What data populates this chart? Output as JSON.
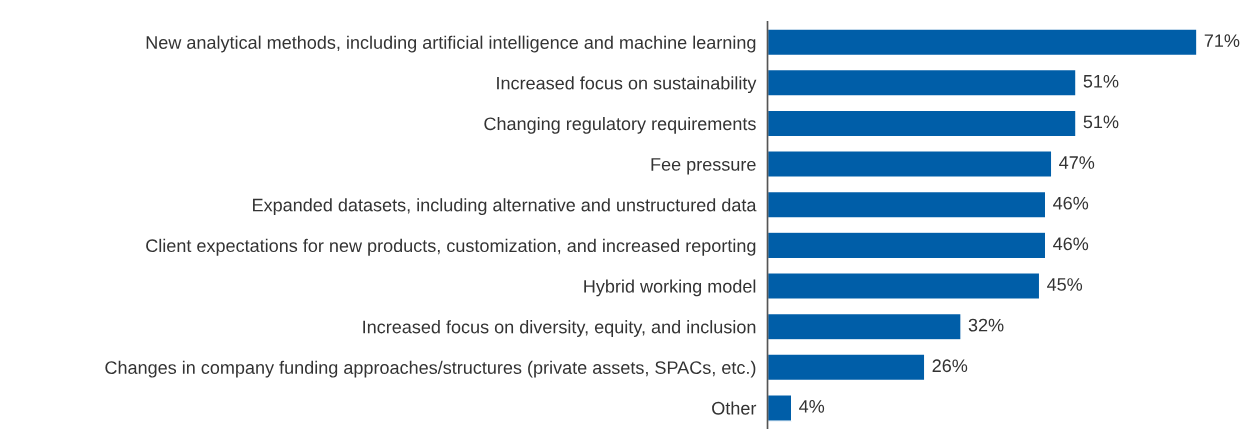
{
  "chart_data": {
    "type": "bar",
    "orientation": "horizontal",
    "categories": [
      "New analytical methods, including artificial intelligence and machine learning",
      "Increased focus on sustainability",
      "Changing regulatory requirements",
      "Fee pressure",
      "Expanded datasets, including alternative and unstructured data",
      "Client expectations for new products, customization, and increased reporting",
      "Hybrid working model",
      "Increased focus on diversity, equity, and inclusion",
      "Changes in company funding approaches/structures (private assets, SPACs, etc.)",
      "Other"
    ],
    "values": [
      71,
      51,
      51,
      47,
      46,
      46,
      45,
      32,
      26,
      4
    ],
    "value_labels": [
      "71%",
      "51%",
      "51%",
      "47%",
      "46%",
      "46%",
      "45%",
      "32%",
      "26%",
      "4%"
    ],
    "color": "#005ea8",
    "grid": false,
    "legend": false
  }
}
